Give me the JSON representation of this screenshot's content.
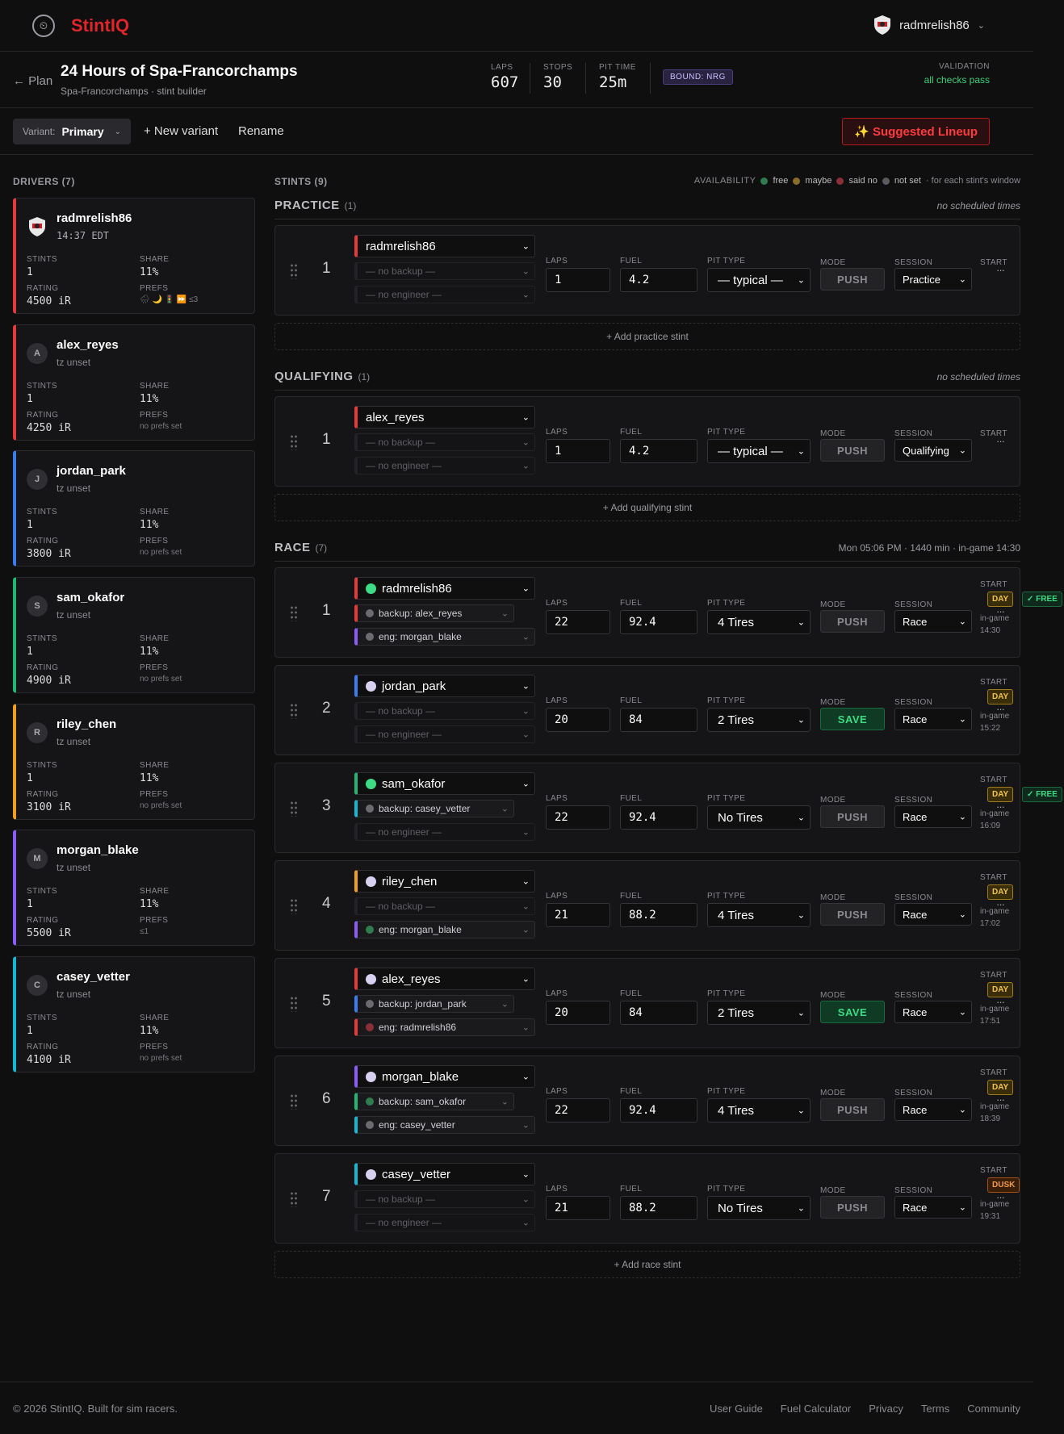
{
  "app": {
    "brand": "StintIQ",
    "user": "radmrelish86"
  },
  "plan": {
    "back": "← Plan",
    "title": "24 Hours of Spa-Francorchamps",
    "subtitle": "Spa-Francorchamps · stint builder",
    "stats": [
      {
        "label": "LAPS",
        "value": "607"
      },
      {
        "label": "STOPS",
        "value": "30"
      },
      {
        "label": "PIT TIME",
        "value": "25m"
      }
    ],
    "bound": "BOUND: NRG",
    "validation_label": "VALIDATION",
    "validation_value": "all checks pass"
  },
  "variant": {
    "label": "Variant:",
    "value": "Primary",
    "new": "+ New variant",
    "rename": "Rename",
    "suggest": "✨ Suggested Lineup"
  },
  "drivers_header": "DRIVERS (7)",
  "driver_labels": {
    "stints": "STINTS",
    "share": "SHARE",
    "rating": "RATING",
    "prefs": "PREFS"
  },
  "drivers": [
    {
      "name": "radmrelish86",
      "initial": "",
      "tz": "14:37 EDT",
      "stints": "1",
      "share": "11%",
      "rating": "4500 iR",
      "prefs": "🌧 🌙 🚦 ⏩ ≤3",
      "color": "#e33b3b"
    },
    {
      "name": "alex_reyes",
      "initial": "A",
      "tz": "tz unset",
      "stints": "1",
      "share": "11%",
      "rating": "4250 iR",
      "prefs": "no prefs set",
      "color": "#e33b3b"
    },
    {
      "name": "jordan_park",
      "initial": "J",
      "tz": "tz unset",
      "stints": "1",
      "share": "11%",
      "rating": "3800 iR",
      "prefs": "no prefs set",
      "color": "#3b7ded"
    },
    {
      "name": "sam_okafor",
      "initial": "S",
      "tz": "tz unset",
      "stints": "1",
      "share": "11%",
      "rating": "4900 iR",
      "prefs": "no prefs set",
      "color": "#22b573"
    },
    {
      "name": "riley_chen",
      "initial": "R",
      "tz": "tz unset",
      "stints": "1",
      "share": "11%",
      "rating": "3100 iR",
      "prefs": "no prefs set",
      "color": "#f0a020"
    },
    {
      "name": "morgan_blake",
      "initial": "M",
      "tz": "tz unset",
      "stints": "1",
      "share": "11%",
      "rating": "5500 iR",
      "prefs": "≤1",
      "color": "#8b5cf6"
    },
    {
      "name": "casey_vetter",
      "initial": "C",
      "tz": "tz unset",
      "stints": "1",
      "share": "11%",
      "rating": "4100 iR",
      "prefs": "no prefs set",
      "color": "#14b8d0"
    }
  ],
  "stints_header": "STINTS (9)",
  "availability": {
    "label": "AVAILABILITY",
    "items": [
      {
        "label": "free",
        "color": "#2e7d4f"
      },
      {
        "label": "maybe",
        "color": "#8a6d2a"
      },
      {
        "label": "said no",
        "color": "#8a2e3a"
      },
      {
        "label": "not set",
        "color": "#5a5a60"
      }
    ],
    "note": "· for each stint's window"
  },
  "field_labels": {
    "laps": "LAPS",
    "fuel": "FUEL",
    "pit": "PIT TYPE",
    "mode": "MODE",
    "session": "SESSION",
    "start": "START",
    "dots": "···",
    "ingame": "in-game"
  },
  "sections": [
    {
      "title": "PRACTICE",
      "count": "(1)",
      "right": "no scheduled times",
      "add": "+ Add practice stint",
      "stints": [
        {
          "num": "1",
          "driver": "radmrelish86",
          "dcolor": "#e33b3b",
          "dot": "",
          "backup": "— no backup —",
          "bcolor": "",
          "bdot": "",
          "engineer": "— no engineer —",
          "ecolor": "",
          "edot": "",
          "laps": "1",
          "fuel": "4.2",
          "pit": "— typical —",
          "mode": "PUSH",
          "session": "Practice",
          "tod": "",
          "time": "",
          "free": ""
        }
      ]
    },
    {
      "title": "QUALIFYING",
      "count": "(1)",
      "right": "no scheduled times",
      "add": "+ Add qualifying stint",
      "stints": [
        {
          "num": "1",
          "driver": "alex_reyes",
          "dcolor": "#e33b3b",
          "dot": "",
          "backup": "— no backup —",
          "bcolor": "",
          "bdot": "",
          "engineer": "— no engineer —",
          "ecolor": "",
          "edot": "",
          "laps": "1",
          "fuel": "4.2",
          "pit": "— typical —",
          "mode": "PUSH",
          "session": "Qualifying",
          "tod": "",
          "time": "",
          "free": ""
        }
      ]
    },
    {
      "title": "RACE",
      "count": "(7)",
      "right": "Mon 05:06 PM  · 1440 min  · in-game 14:30",
      "add": "+ Add race stint",
      "stints": [
        {
          "num": "1",
          "driver": "radmrelish86",
          "dcolor": "#e33b3b",
          "dot": "#3ddc84",
          "backup": "backup: alex_reyes",
          "bcolor": "#e33b3b",
          "bdot": "#6b6b70",
          "engineer": "eng: morgan_blake",
          "ecolor": "#8b5cf6",
          "edot": "#6b6b70",
          "laps": "22",
          "fuel": "92.4",
          "pit": "4 Tires",
          "mode": "PUSH",
          "session": "Race",
          "tod": "DAY",
          "time": "14:30",
          "free": "✓ FREE"
        },
        {
          "num": "2",
          "driver": "jordan_park",
          "dcolor": "#3b7ded",
          "dot": "#d8d0f0",
          "backup": "— no backup —",
          "bcolor": "",
          "bdot": "",
          "engineer": "— no engineer —",
          "ecolor": "",
          "edot": "",
          "laps": "20",
          "fuel": "84",
          "pit": "2 Tires",
          "mode": "SAVE",
          "session": "Race",
          "tod": "DAY",
          "time": "15:22",
          "free": ""
        },
        {
          "num": "3",
          "driver": "sam_okafor",
          "dcolor": "#22b573",
          "dot": "#3ddc84",
          "backup": "backup: casey_vetter",
          "bcolor": "#14b8d0",
          "bdot": "#6b6b70",
          "engineer": "— no engineer —",
          "ecolor": "",
          "edot": "",
          "laps": "22",
          "fuel": "92.4",
          "pit": "No Tires",
          "mode": "PUSH",
          "session": "Race",
          "tod": "DAY",
          "time": "16:09",
          "free": "✓ FREE"
        },
        {
          "num": "4",
          "driver": "riley_chen",
          "dcolor": "#f0a020",
          "dot": "#d8d0f0",
          "backup": "— no backup —",
          "bcolor": "",
          "bdot": "",
          "engineer": "eng: morgan_blake",
          "ecolor": "#8b5cf6",
          "edot": "#2e7d4f",
          "laps": "21",
          "fuel": "88.2",
          "pit": "4 Tires",
          "mode": "PUSH",
          "session": "Race",
          "tod": "DAY",
          "time": "17:02",
          "free": ""
        },
        {
          "num": "5",
          "driver": "alex_reyes",
          "dcolor": "#e33b3b",
          "dot": "#d8d0f0",
          "backup": "backup: jordan_park",
          "bcolor": "#3b7ded",
          "bdot": "#6b6b70",
          "engineer": "eng: radmrelish86",
          "ecolor": "#e33b3b",
          "edot": "#8a2e3a",
          "laps": "20",
          "fuel": "84",
          "pit": "2 Tires",
          "mode": "SAVE",
          "session": "Race",
          "tod": "DAY",
          "time": "17:51",
          "free": ""
        },
        {
          "num": "6",
          "driver": "morgan_blake",
          "dcolor": "#8b5cf6",
          "dot": "#d8d0f0",
          "backup": "backup: sam_okafor",
          "bcolor": "#22b573",
          "bdot": "#2e7d4f",
          "engineer": "eng: casey_vetter",
          "ecolor": "#14b8d0",
          "edot": "#6b6b70",
          "laps": "22",
          "fuel": "92.4",
          "pit": "4 Tires",
          "mode": "PUSH",
          "session": "Race",
          "tod": "DAY",
          "time": "18:39",
          "free": ""
        },
        {
          "num": "7",
          "driver": "casey_vetter",
          "dcolor": "#14b8d0",
          "dot": "#d8d0f0",
          "backup": "— no backup —",
          "bcolor": "",
          "bdot": "",
          "engineer": "— no engineer —",
          "ecolor": "",
          "edot": "",
          "laps": "21",
          "fuel": "88.2",
          "pit": "No Tires",
          "mode": "PUSH",
          "session": "Race",
          "tod": "DUSK",
          "time": "19:31",
          "free": ""
        }
      ]
    }
  ],
  "footer": {
    "copy": "© 2026 StintIQ. Built for sim racers.",
    "links": [
      "User Guide",
      "Fuel Calculator",
      "Privacy",
      "Terms",
      "Community"
    ]
  }
}
